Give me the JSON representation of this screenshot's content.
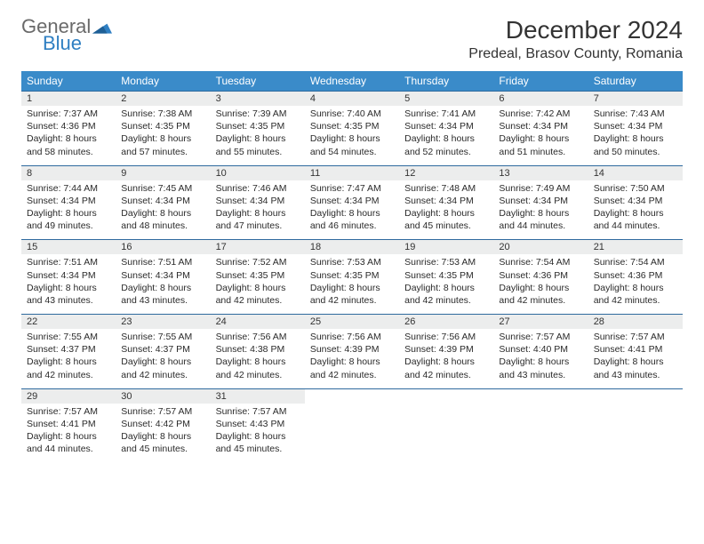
{
  "brand": {
    "general": "General",
    "blue": "Blue"
  },
  "title": "December 2024",
  "location": "Predeal, Brasov County, Romania",
  "colors": {
    "header_bg": "#3a8bc9",
    "header_text": "#ffffff",
    "daynum_bg": "#eceded",
    "rule": "#2f6a9e",
    "logo_blue": "#2f7fc2",
    "logo_gray": "#6a6a6a"
  },
  "weekdays": [
    "Sunday",
    "Monday",
    "Tuesday",
    "Wednesday",
    "Thursday",
    "Friday",
    "Saturday"
  ],
  "days": [
    {
      "n": 1,
      "sr": "7:37 AM",
      "ss": "4:36 PM",
      "dl": "8 hours and 58 minutes."
    },
    {
      "n": 2,
      "sr": "7:38 AM",
      "ss": "4:35 PM",
      "dl": "8 hours and 57 minutes."
    },
    {
      "n": 3,
      "sr": "7:39 AM",
      "ss": "4:35 PM",
      "dl": "8 hours and 55 minutes."
    },
    {
      "n": 4,
      "sr": "7:40 AM",
      "ss": "4:35 PM",
      "dl": "8 hours and 54 minutes."
    },
    {
      "n": 5,
      "sr": "7:41 AM",
      "ss": "4:34 PM",
      "dl": "8 hours and 52 minutes."
    },
    {
      "n": 6,
      "sr": "7:42 AM",
      "ss": "4:34 PM",
      "dl": "8 hours and 51 minutes."
    },
    {
      "n": 7,
      "sr": "7:43 AM",
      "ss": "4:34 PM",
      "dl": "8 hours and 50 minutes."
    },
    {
      "n": 8,
      "sr": "7:44 AM",
      "ss": "4:34 PM",
      "dl": "8 hours and 49 minutes."
    },
    {
      "n": 9,
      "sr": "7:45 AM",
      "ss": "4:34 PM",
      "dl": "8 hours and 48 minutes."
    },
    {
      "n": 10,
      "sr": "7:46 AM",
      "ss": "4:34 PM",
      "dl": "8 hours and 47 minutes."
    },
    {
      "n": 11,
      "sr": "7:47 AM",
      "ss": "4:34 PM",
      "dl": "8 hours and 46 minutes."
    },
    {
      "n": 12,
      "sr": "7:48 AM",
      "ss": "4:34 PM",
      "dl": "8 hours and 45 minutes."
    },
    {
      "n": 13,
      "sr": "7:49 AM",
      "ss": "4:34 PM",
      "dl": "8 hours and 44 minutes."
    },
    {
      "n": 14,
      "sr": "7:50 AM",
      "ss": "4:34 PM",
      "dl": "8 hours and 44 minutes."
    },
    {
      "n": 15,
      "sr": "7:51 AM",
      "ss": "4:34 PM",
      "dl": "8 hours and 43 minutes."
    },
    {
      "n": 16,
      "sr": "7:51 AM",
      "ss": "4:34 PM",
      "dl": "8 hours and 43 minutes."
    },
    {
      "n": 17,
      "sr": "7:52 AM",
      "ss": "4:35 PM",
      "dl": "8 hours and 42 minutes."
    },
    {
      "n": 18,
      "sr": "7:53 AM",
      "ss": "4:35 PM",
      "dl": "8 hours and 42 minutes."
    },
    {
      "n": 19,
      "sr": "7:53 AM",
      "ss": "4:35 PM",
      "dl": "8 hours and 42 minutes."
    },
    {
      "n": 20,
      "sr": "7:54 AM",
      "ss": "4:36 PM",
      "dl": "8 hours and 42 minutes."
    },
    {
      "n": 21,
      "sr": "7:54 AM",
      "ss": "4:36 PM",
      "dl": "8 hours and 42 minutes."
    },
    {
      "n": 22,
      "sr": "7:55 AM",
      "ss": "4:37 PM",
      "dl": "8 hours and 42 minutes."
    },
    {
      "n": 23,
      "sr": "7:55 AM",
      "ss": "4:37 PM",
      "dl": "8 hours and 42 minutes."
    },
    {
      "n": 24,
      "sr": "7:56 AM",
      "ss": "4:38 PM",
      "dl": "8 hours and 42 minutes."
    },
    {
      "n": 25,
      "sr": "7:56 AM",
      "ss": "4:39 PM",
      "dl": "8 hours and 42 minutes."
    },
    {
      "n": 26,
      "sr": "7:56 AM",
      "ss": "4:39 PM",
      "dl": "8 hours and 42 minutes."
    },
    {
      "n": 27,
      "sr": "7:57 AM",
      "ss": "4:40 PM",
      "dl": "8 hours and 43 minutes."
    },
    {
      "n": 28,
      "sr": "7:57 AM",
      "ss": "4:41 PM",
      "dl": "8 hours and 43 minutes."
    },
    {
      "n": 29,
      "sr": "7:57 AM",
      "ss": "4:41 PM",
      "dl": "8 hours and 44 minutes."
    },
    {
      "n": 30,
      "sr": "7:57 AM",
      "ss": "4:42 PM",
      "dl": "8 hours and 45 minutes."
    },
    {
      "n": 31,
      "sr": "7:57 AM",
      "ss": "4:43 PM",
      "dl": "8 hours and 45 minutes."
    }
  ],
  "labels": {
    "sunrise": "Sunrise:",
    "sunset": "Sunset:",
    "daylight": "Daylight:"
  }
}
